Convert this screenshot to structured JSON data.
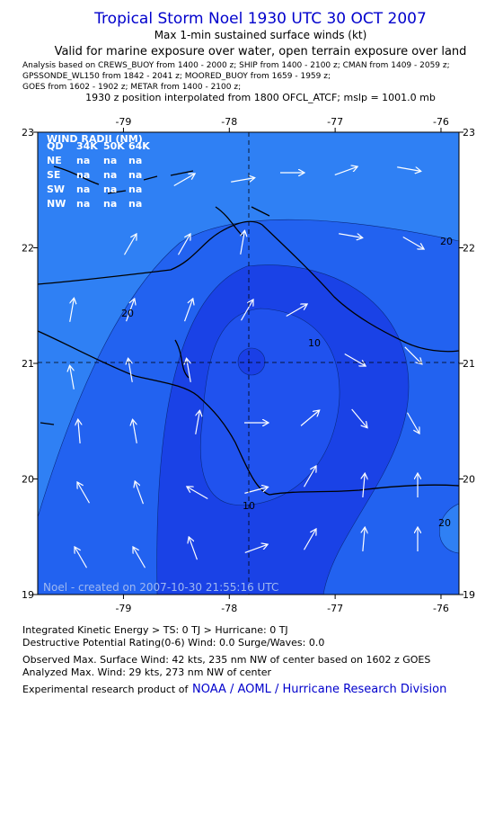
{
  "header": {
    "title": "Tropical Storm Noel 1930 UTC 30 OCT 2007",
    "subtitle": "Max 1-min sustained surface winds (kt)",
    "valid": "Valid for marine exposure over water, open terrain exposure over land",
    "sources": [
      "Analysis based on  CREWS_BUOY from 1400 - 2000 z;  SHIP from 1400 - 2100 z;  CMAN from 1409 - 2059 z;",
      "GPSSONDE_WL150 from 1842 - 2041 z;  MOORED_BUOY from 1659 - 1959 z;",
      "GOES from 1602 - 1902 z;  METAR from 1400 - 2100 z;"
    ],
    "position": "1930 z position interpolated from 1800 OFCL_ATCF; mslp = 1001.0 mb"
  },
  "map": {
    "xlim": [
      -79.81,
      -75.83
    ],
    "ylim": [
      19,
      23
    ],
    "xticks": [
      -79,
      -78,
      -77,
      -76
    ],
    "yticks": [
      19,
      20,
      21,
      22,
      23
    ],
    "wind_radii": {
      "title": "WIND RADII (NM)",
      "header": [
        "QD",
        "34K",
        "50K",
        "64K"
      ],
      "rows": [
        [
          "NE",
          "na",
          "na",
          "na"
        ],
        [
          "SE",
          "na",
          "na",
          "na"
        ],
        [
          "SW",
          "na",
          "na",
          "na"
        ],
        [
          "NW",
          "na",
          "na",
          "na"
        ]
      ]
    },
    "contour_labels": [
      "20",
      "20",
      "10",
      "10",
      "20"
    ],
    "footer": "Noel - created on 2007-10-30 21:55:16 UTC"
  },
  "info": {
    "lines": [
      "Integrated Kinetic Energy > TS: 0 TJ   > Hurricane: 0 TJ",
      "Destructive Potential Rating(0-6)   Wind: 0.0  Surge/Waves: 0.0",
      "Observed Max. Surface Wind: 42 kts, 235 nm NW of center based on 1602 z GOES",
      "Analyzed Max. Wind: 29 kts, 273 nm NW of center"
    ],
    "credit": "Experimental research product of",
    "link": "NOAA / AOML / Hurricane Research Division"
  }
}
